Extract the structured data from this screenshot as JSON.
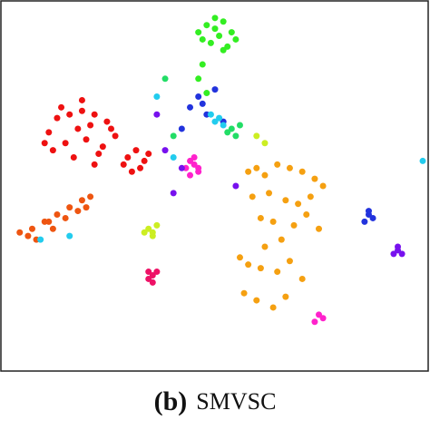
{
  "chart_data": {
    "type": "scatter",
    "panel_label": "(b)",
    "title": "SMVSC",
    "xlim": [
      0,
      100
    ],
    "ylim": [
      0,
      100
    ],
    "series": [
      {
        "color": "#33ee22",
        "x": [
          46,
          48,
          50,
          52,
          54,
          55,
          49,
          51,
          53,
          47,
          50,
          52,
          47,
          46,
          48
        ],
        "values": [
          93,
          95,
          94,
          96,
          93,
          91,
          90,
          92,
          89,
          91,
          97,
          88,
          84,
          80,
          76
        ]
      },
      {
        "color": "#ee1111",
        "x": [
          10,
          12,
          15,
          18,
          21,
          24,
          26,
          14,
          17,
          20,
          23,
          11,
          16,
          19,
          22,
          25,
          13,
          18,
          21,
          9,
          29,
          31,
          33,
          30,
          32,
          34,
          28
        ],
        "values": [
          65,
          69,
          70,
          71,
          70,
          68,
          64,
          62,
          66,
          67,
          61,
          60,
          58,
          63,
          59,
          66,
          72,
          74,
          56,
          62,
          58,
          60,
          57,
          54,
          55,
          59,
          56
        ]
      },
      {
        "color": "#ee5511",
        "x": [
          3,
          6,
          9,
          12,
          15,
          18,
          20,
          7,
          11,
          14,
          17,
          19,
          5,
          10
        ],
        "values": [
          37,
          38,
          40,
          42,
          44,
          46,
          47,
          35,
          38,
          41,
          43,
          44,
          36,
          40
        ]
      },
      {
        "color": "#f5a011",
        "x": [
          58,
          60,
          62,
          65,
          68,
          71,
          74,
          76,
          59,
          63,
          67,
          70,
          73,
          61,
          64,
          69,
          72,
          75,
          66,
          62,
          56,
          58,
          61,
          65,
          68,
          71,
          57,
          60,
          64,
          67
        ],
        "values": [
          54,
          55,
          53,
          56,
          55,
          54,
          52,
          50,
          47,
          48,
          46,
          45,
          47,
          41,
          40,
          39,
          42,
          38,
          35,
          33,
          30,
          28,
          27,
          26,
          29,
          24,
          20,
          18,
          16,
          19
        ]
      },
      {
        "color": "#ff22cc",
        "x": [
          43,
          44,
          45,
          46,
          44,
          45,
          46,
          74,
          75,
          76
        ],
        "values": [
          55,
          57,
          56,
          55,
          53,
          58,
          54,
          12,
          14,
          13
        ]
      },
      {
        "color": "#ee1166",
        "x": [
          34,
          35,
          36,
          35,
          34
        ],
        "values": [
          26,
          25,
          26,
          23,
          24
        ]
      },
      {
        "color": "#7711ee",
        "x": [
          93,
          94,
          95,
          94,
          38,
          42,
          55,
          36,
          40
        ],
        "values": [
          31,
          32,
          31,
          33,
          60,
          55,
          50,
          70,
          48
        ]
      },
      {
        "color": "#2233dd",
        "x": [
          86,
          87,
          88,
          87,
          44,
          46,
          48,
          50,
          52,
          42,
          47
        ],
        "values": [
          40,
          42,
          41,
          43,
          72,
          75,
          70,
          77,
          68,
          66,
          73
        ]
      },
      {
        "color": "#22ccee",
        "x": [
          100,
          50,
          51,
          52,
          49,
          36,
          40,
          8,
          15
        ],
        "values": [
          57,
          68,
          69,
          67,
          70,
          75,
          58,
          35,
          36
        ]
      },
      {
        "color": "#ccee22",
        "x": [
          34,
          35,
          36,
          35,
          33,
          62,
          60
        ],
        "values": [
          38,
          37,
          39,
          36,
          37,
          62,
          64
        ]
      },
      {
        "color": "#22dd66",
        "x": [
          53,
          54,
          55,
          56,
          40,
          38
        ],
        "values": [
          65,
          66,
          64,
          67,
          64,
          80
        ]
      }
    ]
  }
}
